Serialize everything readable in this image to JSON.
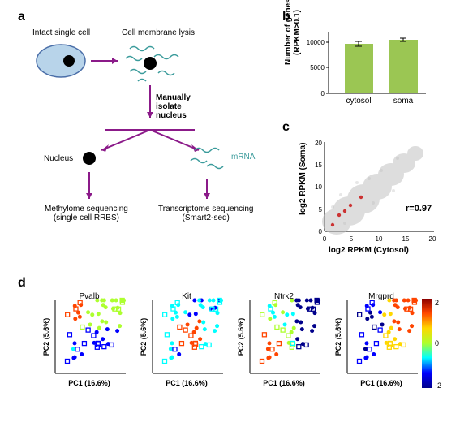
{
  "panel_a": {
    "label": "a",
    "intact": "Intact single cell",
    "lysis": "Cell membrane lysis",
    "isolate": "Manually\nisolate\nnucleus",
    "nucleus": "Nucleus",
    "mrna": "mRNA",
    "meth": "Methylome sequencing\n(single cell RRBS)",
    "trans": "Transcriptome sequencing\n(Smart2-seq)",
    "cell_fill": "#b8d4ea",
    "cell_stroke": "#4a6ea8",
    "nucleus_fill": "#000000",
    "arrow_color": "#8b1a89",
    "mrna_color": "#3a9b9b"
  },
  "panel_b": {
    "label": "b",
    "ylabel": "Number of genes\n(RPKM>0.1)",
    "categories": [
      "cytosol",
      "soma"
    ],
    "values": [
      9800,
      10500
    ],
    "errors": [
      400,
      300
    ],
    "bar_color": "#9bc653",
    "ylim": [
      0,
      12000
    ],
    "yticks": [
      0,
      5000,
      10000
    ],
    "ytick_labels": [
      "0",
      "5000",
      "10000"
    ]
  },
  "panel_c": {
    "label": "c",
    "xlabel": "log2 RPKM (Cytosol)",
    "ylabel": "log2 RPKM (Soma)",
    "xlim": [
      0,
      20
    ],
    "ylim": [
      0,
      20
    ],
    "ticks": [
      0,
      5,
      10,
      15,
      20
    ],
    "r_text": "r=0.97",
    "point_color": "#bdbdbd",
    "highlight_color": "#cc3333"
  },
  "panel_d": {
    "label": "d",
    "titles": [
      "Pvalb",
      "Kit",
      "Ntrk2",
      "Mrgprd"
    ],
    "xlabel": "PC1 (16.6%)",
    "ylabel": "PC2 (5.6%)",
    "colorbar": {
      "min": -2,
      "max": 2,
      "ticks": [
        -2,
        0,
        2
      ],
      "colors": [
        "#8b0000",
        "#ff4500",
        "#ffd700",
        "#adff2f",
        "#00ffff",
        "#0000ff",
        "#00008b"
      ]
    }
  }
}
